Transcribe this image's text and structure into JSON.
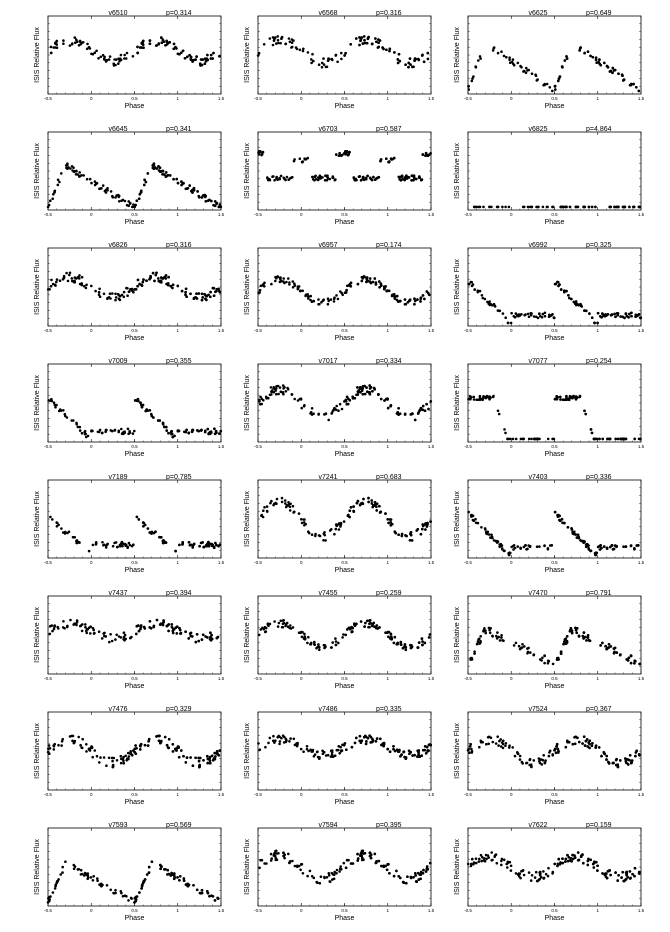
{
  "figure": {
    "ylabel": "ISIS Relative Flux",
    "xlabel": "Phase",
    "xticks": [
      "-0.5",
      "0",
      "0.5",
      "1",
      "1.5"
    ]
  },
  "chart_data": [
    {
      "type": "scatter",
      "title": "v6510",
      "period": "p=0.314",
      "shape": "sin",
      "amp": 0.25,
      "noise": 0.12,
      "level": 0.55,
      "n": 60,
      "seed": 11,
      "xlim": [
        -0.5,
        1.5
      ]
    },
    {
      "type": "scatter",
      "title": "v6568",
      "period": "p=0.316",
      "shape": "sin",
      "amp": 0.3,
      "noise": 0.14,
      "level": 0.55,
      "n": 55,
      "seed": 12,
      "xlim": [
        -0.5,
        1.5
      ]
    },
    {
      "type": "scatter",
      "title": "v6625",
      "period": "p=0.649",
      "shape": "rise",
      "amp": 0.6,
      "noise": 0.08,
      "level": 0.35,
      "n": 45,
      "seed": 13,
      "xlim": [
        -0.5,
        1.5
      ]
    },
    {
      "type": "scatter",
      "title": "v6645",
      "period": "p=0.341",
      "shape": "rise",
      "amp": 0.55,
      "noise": 0.08,
      "level": 0.3,
      "n": 70,
      "seed": 14,
      "xlim": [
        -0.5,
        1.5
      ]
    },
    {
      "type": "scatter",
      "title": "v6703",
      "period": "p=0.587",
      "shape": "eb",
      "amp": 0.45,
      "noise": 0.06,
      "level": 0.5,
      "n": 75,
      "seed": 15,
      "xlim": [
        -0.5,
        1.5
      ]
    },
    {
      "type": "scatter",
      "title": "v6825",
      "period": "p=4.864",
      "shape": "sparse",
      "amp": 0.8,
      "noise": 0.05,
      "level": 0.2,
      "n": 30,
      "seed": 16,
      "xlim": [
        -0.5,
        1.5
      ]
    },
    {
      "type": "scatter",
      "title": "v6826",
      "period": "p=0.316",
      "shape": "sin",
      "amp": 0.25,
      "noise": 0.12,
      "level": 0.5,
      "n": 70,
      "seed": 17,
      "xlim": [
        -0.5,
        1.5
      ]
    },
    {
      "type": "scatter",
      "title": "v6957",
      "period": "p=0.174",
      "shape": "sin",
      "amp": 0.3,
      "noise": 0.08,
      "level": 0.45,
      "n": 70,
      "seed": 18,
      "xlim": [
        -0.5,
        1.5
      ]
    },
    {
      "type": "scatter",
      "title": "v6992",
      "period": "p=0.325",
      "shape": "decay",
      "amp": 0.55,
      "noise": 0.07,
      "level": 0.3,
      "n": 70,
      "seed": 19,
      "xlim": [
        -0.5,
        1.5
      ]
    },
    {
      "type": "scatter",
      "title": "v7009",
      "period": "p=0.355",
      "shape": "decay",
      "amp": 0.55,
      "noise": 0.07,
      "level": 0.3,
      "n": 60,
      "seed": 20,
      "xlim": [
        -0.5,
        1.5
      ]
    },
    {
      "type": "scatter",
      "title": "v7017",
      "period": "p=0.334",
      "shape": "sin",
      "amp": 0.35,
      "noise": 0.12,
      "level": 0.5,
      "n": 70,
      "seed": 21,
      "xlim": [
        -0.5,
        1.5
      ]
    },
    {
      "type": "scatter",
      "title": "v7077",
      "period": "p=0.254",
      "shape": "plateau",
      "amp": 0.7,
      "noise": 0.05,
      "level": 0.25,
      "n": 60,
      "seed": 22,
      "xlim": [
        -0.5,
        1.5
      ]
    },
    {
      "type": "scatter",
      "title": "v7189",
      "period": "p=0.785",
      "shape": "decay",
      "amp": 0.45,
      "noise": 0.08,
      "level": 0.3,
      "n": 55,
      "seed": 23,
      "xlim": [
        -0.5,
        1.5
      ]
    },
    {
      "type": "scatter",
      "title": "v7241",
      "period": "p=0.683",
      "shape": "sin",
      "amp": 0.45,
      "noise": 0.12,
      "level": 0.5,
      "n": 65,
      "seed": 24,
      "xlim": [
        -0.5,
        1.5
      ]
    },
    {
      "type": "scatter",
      "title": "v7403",
      "period": "p=0.336",
      "shape": "decay",
      "amp": 0.55,
      "noise": 0.06,
      "level": 0.3,
      "n": 70,
      "seed": 25,
      "xlim": [
        -0.5,
        1.5
      ]
    },
    {
      "type": "scatter",
      "title": "v7437",
      "period": "p=0.394",
      "shape": "sin",
      "amp": 0.2,
      "noise": 0.12,
      "level": 0.55,
      "n": 60,
      "seed": 26,
      "xlim": [
        -0.5,
        1.5
      ]
    },
    {
      "type": "scatter",
      "title": "v7455",
      "period": "p=0.259",
      "shape": "sin",
      "amp": 0.3,
      "noise": 0.1,
      "level": 0.5,
      "n": 70,
      "seed": 27,
      "xlim": [
        -0.5,
        1.5
      ]
    },
    {
      "type": "scatter",
      "title": "v7470",
      "period": "p=0.791",
      "shape": "rise",
      "amp": 0.45,
      "noise": 0.1,
      "level": 0.35,
      "n": 60,
      "seed": 28,
      "xlim": [
        -0.5,
        1.5
      ]
    },
    {
      "type": "scatter",
      "title": "v7476",
      "period": "p=0.329",
      "shape": "sin",
      "amp": 0.3,
      "noise": 0.13,
      "level": 0.5,
      "n": 70,
      "seed": 29,
      "xlim": [
        -0.5,
        1.5
      ]
    },
    {
      "type": "scatter",
      "title": "v7486",
      "period": "p=0.335",
      "shape": "sin",
      "amp": 0.2,
      "noise": 0.12,
      "level": 0.55,
      "n": 70,
      "seed": 30,
      "xlim": [
        -0.5,
        1.5
      ]
    },
    {
      "type": "scatter",
      "title": "v7524",
      "period": "p=0.367",
      "shape": "sin",
      "amp": 0.3,
      "noise": 0.13,
      "level": 0.5,
      "n": 70,
      "seed": 31,
      "xlim": [
        -0.5,
        1.5
      ]
    },
    {
      "type": "scatter",
      "title": "v7593",
      "period": "p=0.569",
      "shape": "rise",
      "amp": 0.5,
      "noise": 0.08,
      "level": 0.3,
      "n": 60,
      "seed": 32,
      "xlim": [
        -0.5,
        1.5
      ]
    },
    {
      "type": "scatter",
      "title": "v7594",
      "period": "p=0.395",
      "shape": "sin",
      "amp": 0.3,
      "noise": 0.13,
      "level": 0.5,
      "n": 70,
      "seed": 33,
      "xlim": [
        -0.5,
        1.5
      ]
    },
    {
      "type": "scatter",
      "title": "v7622",
      "period": "p=0.159",
      "shape": "sin",
      "amp": 0.25,
      "noise": 0.13,
      "level": 0.5,
      "n": 75,
      "seed": 34,
      "xlim": [
        -0.5,
        1.5
      ]
    }
  ]
}
